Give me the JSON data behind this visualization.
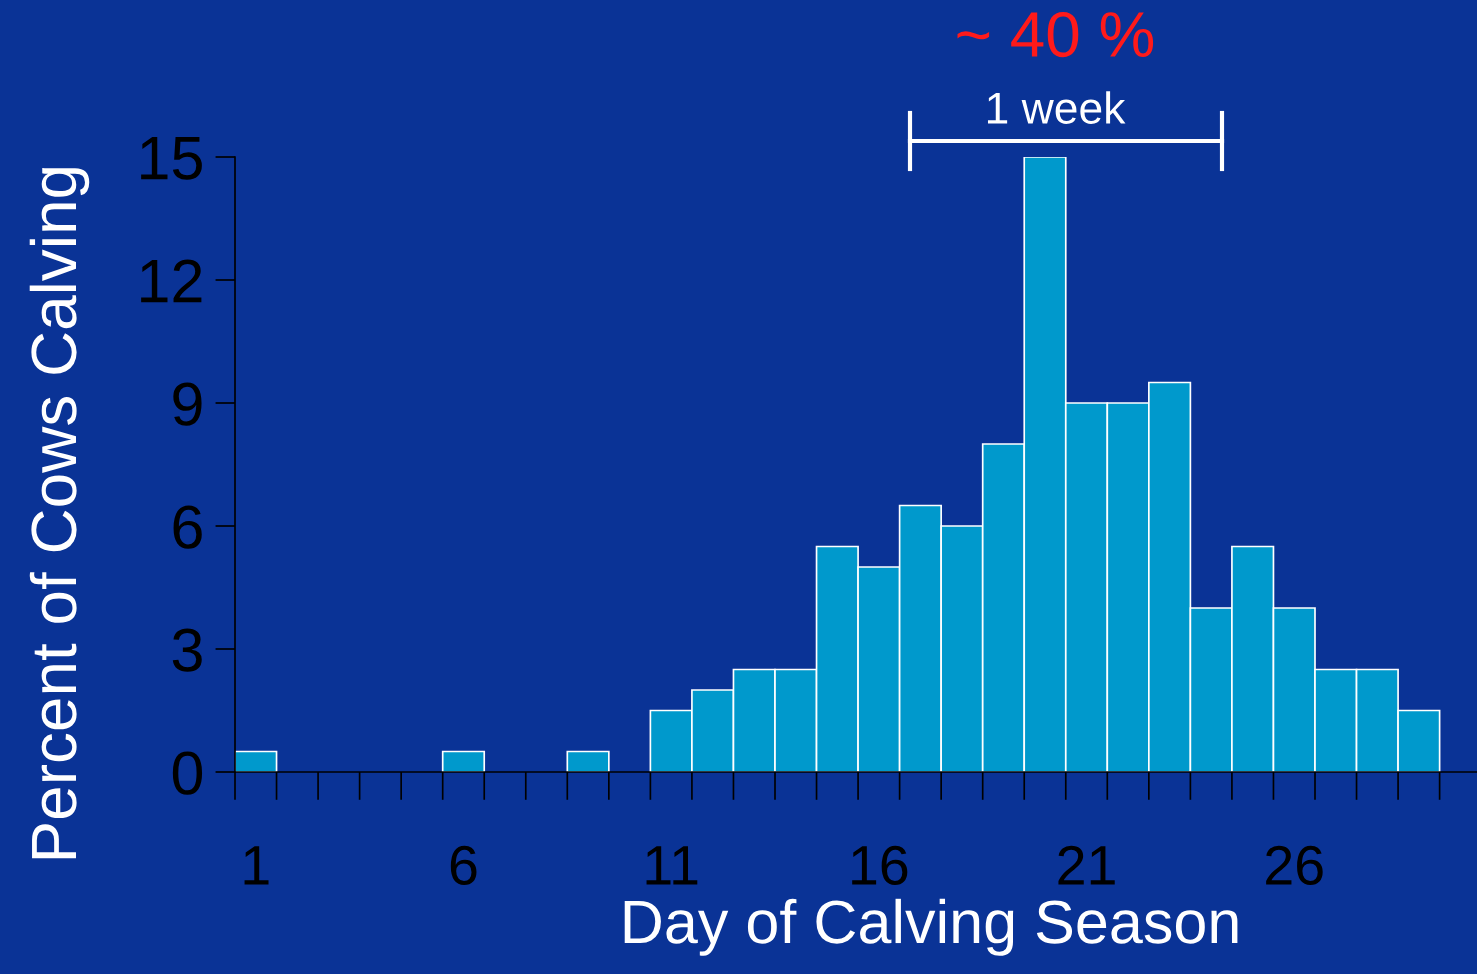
{
  "chart_data": {
    "type": "bar",
    "xlabel": "Day of Calving Season",
    "ylabel": "Percent of Cows Calving",
    "categories": [
      "1",
      null,
      null,
      null,
      null,
      "6",
      null,
      null,
      null,
      null,
      "11",
      null,
      null,
      null,
      null,
      "16",
      null,
      null,
      null,
      null,
      "21",
      null,
      null,
      null,
      null,
      "26",
      null,
      null,
      null
    ],
    "values": [
      0.5,
      0,
      0,
      0,
      0,
      0.5,
      0,
      0,
      0.5,
      0,
      1.5,
      2,
      2.5,
      2.5,
      5.5,
      5,
      6.5,
      6,
      8,
      15,
      9,
      9,
      9.5,
      4,
      5.5,
      4,
      2.5,
      2.5,
      1.5
    ],
    "color": "#0099cc",
    "ylim": [
      0,
      15
    ],
    "yticks": [
      0,
      3,
      6,
      9,
      12,
      15
    ],
    "grid": false,
    "annotations": [
      "~ 40 %",
      "1 week"
    ]
  }
}
